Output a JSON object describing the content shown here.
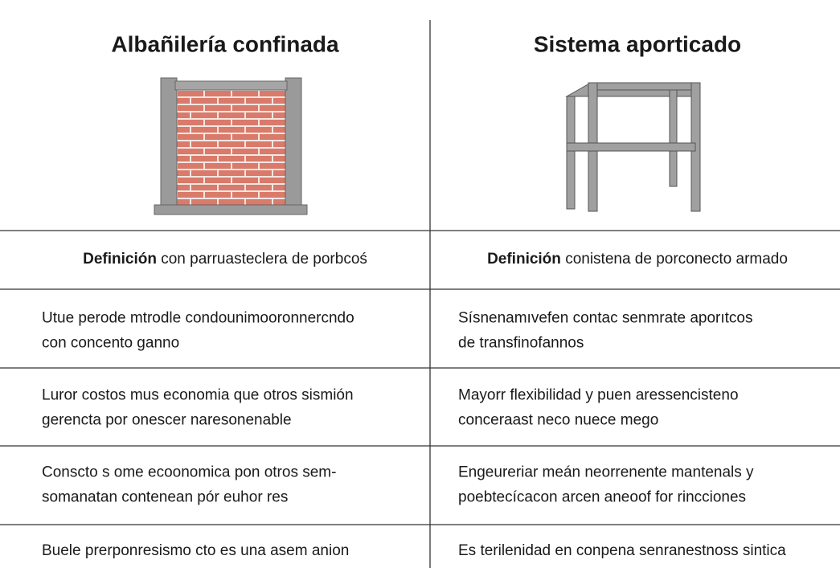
{
  "columns": [
    {
      "title": "Albañilería confinada"
    },
    {
      "title": "Sistema aporticado"
    }
  ],
  "rows": [
    [
      {
        "label": "Definición",
        "text": "con parruasteclera de porbcoś"
      },
      {
        "label": "Definición",
        "text": "conistena de porconecto armado"
      }
    ],
    [
      {
        "lines": [
          "Utue perode mtrodle condounimooronnercndo",
          "con concento ganno"
        ]
      },
      {
        "lines": [
          "Sísnenamıvefen contac senmrate aporıtcos",
          "de transfinofannos"
        ]
      }
    ],
    [
      {
        "lines": [
          "Luror costos mus economia que otros sismión",
          "gerencta por onescer naresonenable"
        ]
      },
      {
        "lines": [
          "Mayorr flexibilidad y puen aressencisteno",
          "conceraast neco nuece mego"
        ]
      }
    ],
    [
      {
        "lines": [
          "Conscto s ome ecoonomica pon otros sem-",
          "somanatan contenean pór euhor res"
        ]
      },
      {
        "lines": [
          "Engeureriar meán neorrenente mantenals y",
          "poebtecícacon arcen aneoof for rincciones"
        ]
      }
    ],
    [
      {
        "lines": [
          "Buele prerponresismo cto es una asem anion"
        ]
      },
      {
        "lines": [
          "Es terilenidad en conpena senranestnoss sintica"
        ]
      }
    ]
  ]
}
